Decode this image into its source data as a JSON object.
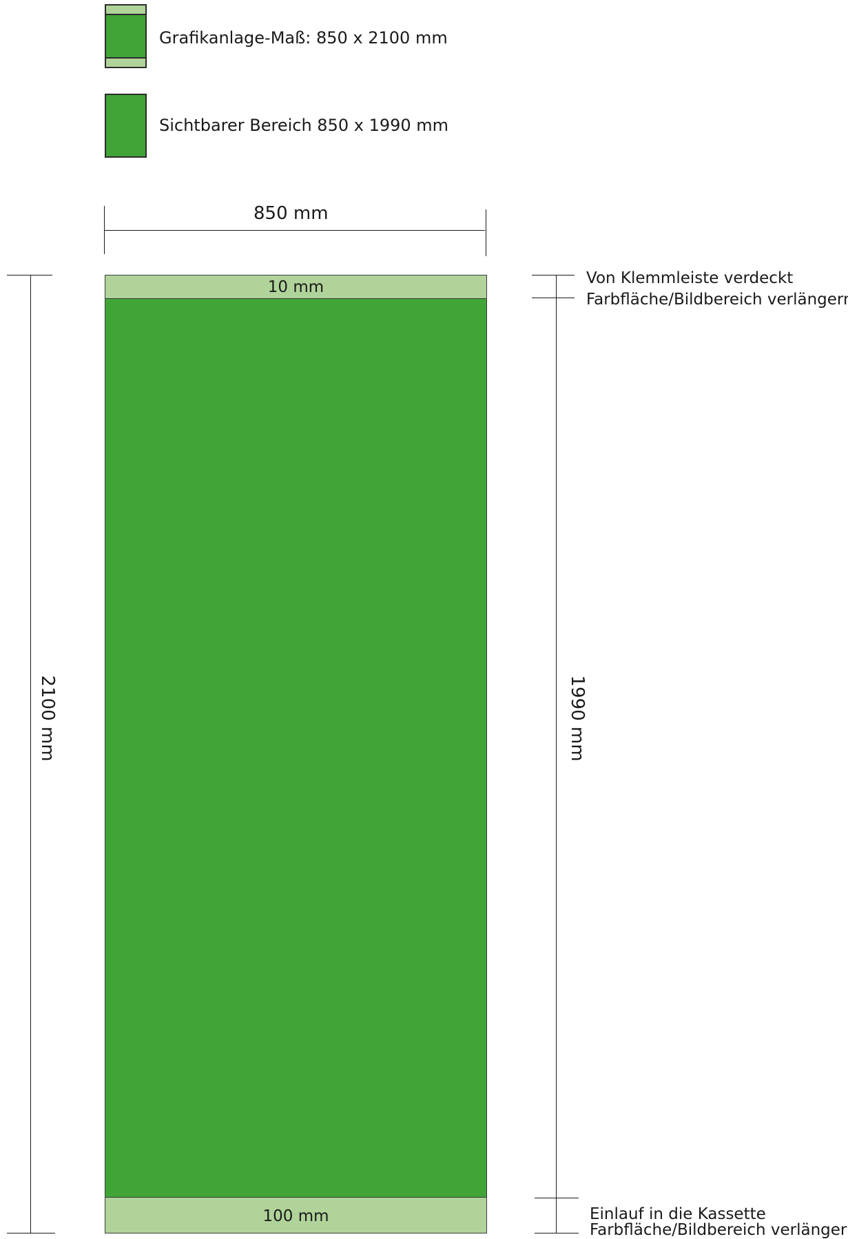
{
  "legend": {
    "item1_label": "Grafikanlage-Maß: 850 x 2100 mm",
    "item2_label": "Sichtbarer Bereich 850 x 1990 mm"
  },
  "panel": {
    "top_band_label": "10 mm",
    "bottom_band_label": "100 mm"
  },
  "dimensions": {
    "width_label": "850 mm",
    "total_height_label": "2100 mm",
    "visible_height_label": "1990 mm"
  },
  "annotations": {
    "top_line1": "Von Klemmleiste verdeckt",
    "top_line2": "Farbfläche/Bildbereich verlängern",
    "bottom_line1": "Einlauf in die Kassette",
    "bottom_line2": "Farbfläche/Bildbereich verlängern"
  },
  "colors": {
    "visible_area": "#40a436",
    "hidden_band": "#b0d39a",
    "line": "#1a1a1a"
  }
}
